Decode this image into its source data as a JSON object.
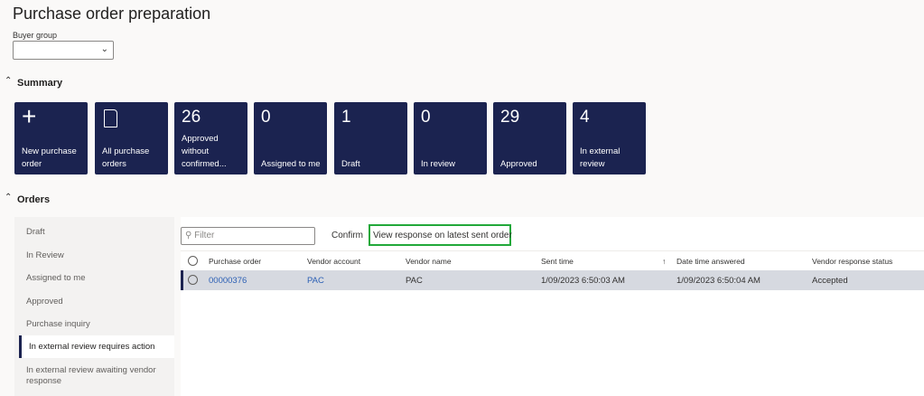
{
  "page": {
    "title": "Purchase order preparation"
  },
  "filters": {
    "buyer_group_label": "Buyer group",
    "buyer_group_value": ""
  },
  "summary": {
    "title": "Summary",
    "tiles": [
      {
        "count": "",
        "label": "New purchase order",
        "icon": "plus-icon"
      },
      {
        "count": "",
        "label": "All purchase orders",
        "icon": "document-icon"
      },
      {
        "count": "26",
        "label": "Approved without confirmed..."
      },
      {
        "count": "0",
        "label": "Assigned to me"
      },
      {
        "count": "1",
        "label": "Draft"
      },
      {
        "count": "0",
        "label": "In review"
      },
      {
        "count": "29",
        "label": "Approved"
      },
      {
        "count": "4",
        "label": "In external review"
      }
    ]
  },
  "orders": {
    "title": "Orders",
    "nav": [
      "Draft",
      "In Review",
      "Assigned to me",
      "Approved",
      "Purchase inquiry",
      "In external review requires action",
      "In external review awaiting vendor response"
    ],
    "selected_nav": "In external review requires action",
    "filter_placeholder": "Filter",
    "actions": {
      "confirm": "Confirm",
      "view_response": "View response on latest sent order"
    },
    "columns": [
      "Purchase order",
      "Vendor account",
      "Vendor name",
      "Sent time",
      "Date time answered",
      "Vendor response status"
    ],
    "sort_indicator": "↑",
    "rows": [
      {
        "purchase_order": "00000376",
        "vendor_account": "PAC",
        "vendor_name": "PAC",
        "sent_time": "1/09/2023 6:50:03 AM",
        "date_time_answered": "1/09/2023 6:50:04 AM",
        "status": "Accepted"
      }
    ]
  },
  "colors": {
    "tile": "#1b2350",
    "highlight": "#22a83a",
    "link": "#2b5fb4",
    "selected_row": "#d6d9e0"
  }
}
